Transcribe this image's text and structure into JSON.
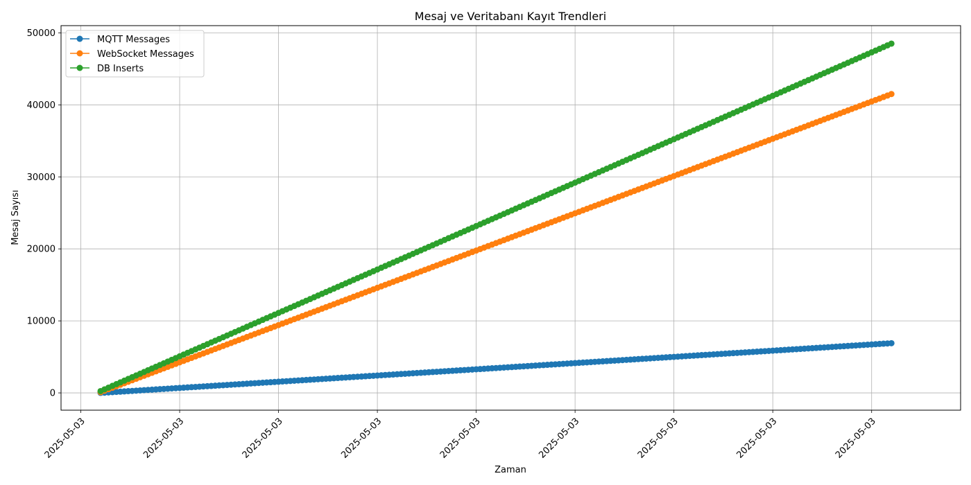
{
  "chart_data": {
    "type": "line",
    "title": "Mesaj ve Veritabanı Kayıt Trendleri",
    "xlabel": "Zaman",
    "ylabel": "Mesaj Sayısı",
    "x_tick_labels": [
      "2025-05-03",
      "2025-05-03",
      "2025-05-03",
      "2025-05-03",
      "2025-05-03",
      "2025-05-03",
      "2025-05-03",
      "2025-05-03",
      "2025-05-03"
    ],
    "x_range": [
      -0.2,
      8.9
    ],
    "x": [
      0.2,
      8.2
    ],
    "ylim": [
      -2400,
      51000
    ],
    "yticks": [
      0,
      10000,
      20000,
      30000,
      40000,
      50000
    ],
    "grid": true,
    "legend_position": "upper-left",
    "series": [
      {
        "name": "MQTT Messages",
        "color": "#1f77b4",
        "values": [
          0,
          6900
        ]
      },
      {
        "name": "WebSocket Messages",
        "color": "#ff7f0e",
        "values": [
          100,
          41500
        ]
      },
      {
        "name": "DB Inserts",
        "color": "#2ca02c",
        "values": [
          250,
          48500
        ]
      }
    ]
  }
}
